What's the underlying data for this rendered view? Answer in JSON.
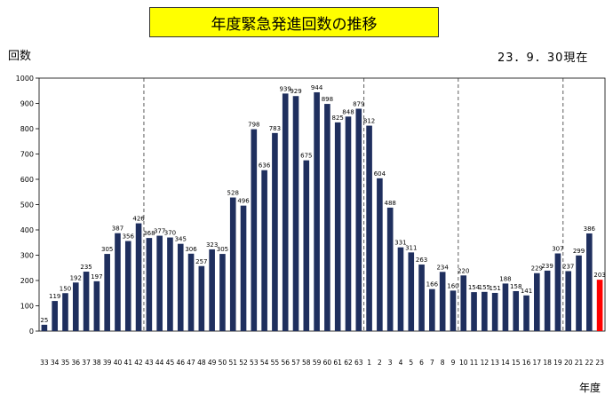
{
  "title": "年度緊急発進回数の推移",
  "as_of": "23．9．30現在",
  "colors": {
    "bar": "#1f2f5e",
    "highlight_bar": "#ff0000",
    "highlight_label": "#ff0000",
    "title_bg": "#ffff00"
  },
  "chart_data": {
    "type": "bar",
    "title": "年度緊急発進回数の推移",
    "ylabel": "回数",
    "xlabel": "年度",
    "ylim": [
      0,
      1000
    ],
    "yticks": [
      0,
      100,
      200,
      300,
      400,
      500,
      600,
      700,
      800,
      900,
      1000
    ],
    "grid": false,
    "legend": "none",
    "categories": [
      "33",
      "34",
      "35",
      "36",
      "37",
      "38",
      "39",
      "40",
      "41",
      "42",
      "43",
      "44",
      "45",
      "46",
      "47",
      "48",
      "49",
      "50",
      "51",
      "52",
      "53",
      "54",
      "55",
      "56",
      "57",
      "58",
      "59",
      "60",
      "61",
      "62",
      "63",
      "1",
      "2",
      "3",
      "4",
      "5",
      "6",
      "7",
      "8",
      "9",
      "10",
      "11",
      "12",
      "13",
      "14",
      "15",
      "16",
      "17",
      "18",
      "19",
      "20",
      "21",
      "22",
      "23"
    ],
    "values": [
      25,
      119,
      150,
      192,
      235,
      197,
      305,
      387,
      356,
      426,
      368,
      377,
      370,
      345,
      306,
      257,
      323,
      305,
      528,
      496,
      798,
      636,
      783,
      939,
      929,
      675,
      944,
      898,
      825,
      848,
      879,
      812,
      604,
      488,
      331,
      311,
      263,
      166,
      234,
      160,
      220,
      154,
      155,
      151,
      188,
      158,
      141,
      229,
      239,
      307,
      237,
      299,
      386,
      203
    ],
    "highlight_categories": [
      "59",
      "23"
    ],
    "era_dividers_after": [
      "42",
      "63",
      "9",
      "19"
    ]
  }
}
